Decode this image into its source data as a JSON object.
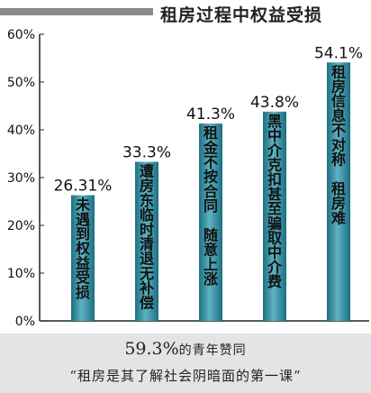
{
  "title": "租房过程中权益受损",
  "colors": {
    "bar_light": "#5fb3c4",
    "bar_dark": "#1b6f80",
    "axis": "#222222",
    "footer_bg": "#e2e4e6"
  },
  "chart_data": {
    "type": "bar",
    "title": "租房过程中权益受损",
    "ylim": [
      0,
      60
    ],
    "yticks": [
      "0%",
      "10%",
      "20%",
      "30%",
      "40%",
      "50%",
      "60%"
    ],
    "categories": [
      "未遇到权益受损",
      "遭房东临时清退无补偿",
      "租金不按合同 随意上涨",
      "黑中介克扣甚至骗取中介费",
      "租房信息不对称 租房难"
    ],
    "values": [
      26.31,
      33.3,
      41.3,
      43.8,
      54.1
    ],
    "value_labels": [
      "26.31%",
      "33.3%",
      "41.3%",
      "43.8%",
      "54.1%"
    ],
    "bar_text_columns": [
      [
        "未遇到权益受损"
      ],
      [
        "遭房东临时清退无补偿"
      ],
      [
        "租金不按合同",
        "随意上涨"
      ],
      [
        "黑中介克扣甚至骗取中介费"
      ],
      [
        "租房信息不对称",
        "租房难"
      ]
    ],
    "grid": false
  },
  "footer": {
    "percent": "59.3%",
    "percent_text": "的青年赞同",
    "quote": "“租房是其了解社会阴暗面的第一课”"
  }
}
